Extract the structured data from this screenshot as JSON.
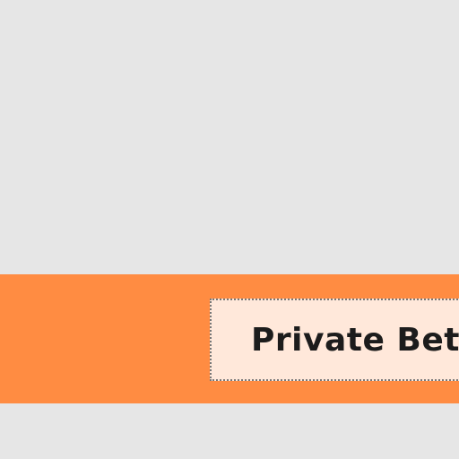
{
  "banner": {
    "badge_label": "Private Beta"
  },
  "colors": {
    "page_background": "#e6e6e6",
    "banner_background": "#ff8c42",
    "badge_background": "#ffe8da",
    "badge_border": "#777777",
    "badge_text": "#1c1c1c"
  }
}
